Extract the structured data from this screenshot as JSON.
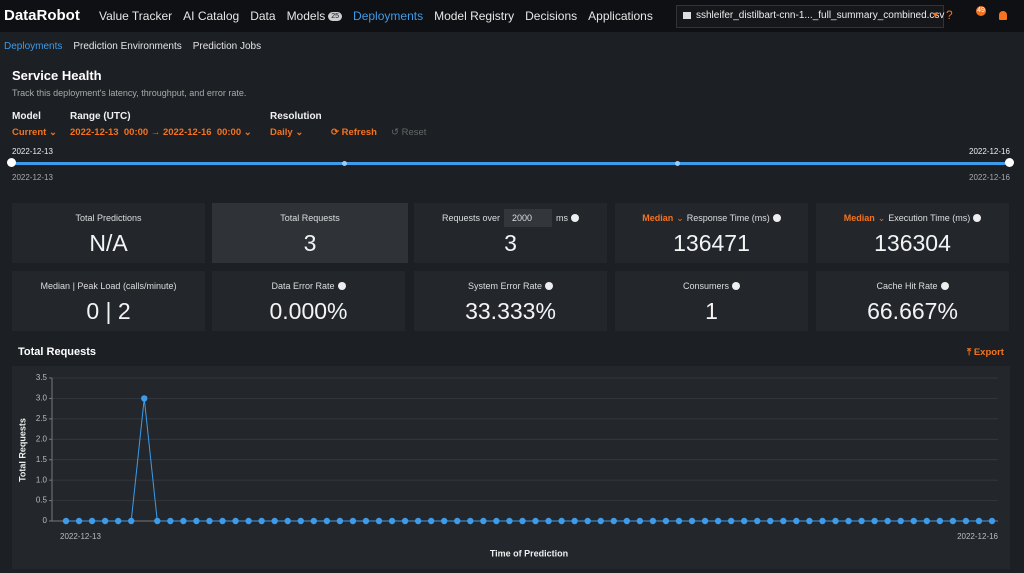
{
  "nav": {
    "logo": "DataRobot",
    "items": [
      "Value Tracker",
      "AI Catalog",
      "Data",
      "Models",
      "Deployments",
      "Model Registry",
      "Decisions",
      "Applications"
    ],
    "models_badge": 25,
    "file_selector": "sshleifer_distilbart-cnn-1..._full_summary_combined.csv",
    "help": "?",
    "notifications": 49
  },
  "subnav": [
    "Deployments",
    "Prediction Environments",
    "Prediction Jobs"
  ],
  "header": {
    "title": "Service Health",
    "subtitle": "Track this deployment's latency, throughput, and error rate."
  },
  "controls": {
    "model_label": "Model",
    "model_value": "Current",
    "range_label": "Range (UTC)",
    "range_value": "2022-12-13  00:00 → 2022-12-16  00:00",
    "resolution_label": "Resolution",
    "resolution_value": "Daily",
    "refresh": "Refresh",
    "reset": "Reset"
  },
  "slider": {
    "start": "2022-12-13",
    "end": "2022-12-16"
  },
  "metrics": [
    {
      "label": "Total Predictions",
      "value": "N/A"
    },
    {
      "label": "Total Requests",
      "value": "3"
    },
    {
      "label": "Requests over",
      "input": "2000",
      "unit": "ms",
      "value": "3"
    },
    {
      "selector": "Median",
      "label": "Response Time (ms)",
      "value": "136471"
    },
    {
      "selector": "Median",
      "label": "Execution Time (ms)",
      "value": "136304"
    },
    {
      "label": "Median | Peak Load (calls/minute)",
      "value": "0 | 2"
    },
    {
      "label": "Data Error Rate",
      "value": "0.000%"
    },
    {
      "label": "System Error Rate",
      "value": "33.333%"
    },
    {
      "label": "Consumers",
      "value": "1"
    },
    {
      "label": "Cache Hit Rate",
      "value": "66.667%"
    }
  ],
  "chart_section": {
    "title": "Total Requests",
    "export": "Export"
  },
  "chart_data": {
    "type": "line",
    "x_label": "Time of Prediction",
    "y_label": "Total Requests",
    "color": "#3d9be9",
    "grid": true,
    "categories": [
      "2022-12-13",
      null,
      null,
      null,
      null,
      null,
      null,
      null,
      null,
      null,
      null,
      null,
      null,
      null,
      null,
      null,
      null,
      null,
      null,
      null,
      null,
      null,
      null,
      null,
      null,
      null,
      null,
      null,
      null,
      null,
      null,
      null,
      null,
      null,
      null,
      null,
      null,
      null,
      null,
      null,
      null,
      null,
      null,
      null,
      null,
      null,
      null,
      null,
      null,
      null,
      null,
      null,
      null,
      null,
      null,
      null,
      null,
      null,
      null,
      null,
      null,
      null,
      null,
      null,
      null,
      null,
      null,
      null,
      null,
      null,
      null,
      "2022-12-16"
    ],
    "values": [
      0,
      0,
      0,
      0,
      0,
      0,
      3,
      0,
      0,
      0,
      0,
      0,
      0,
      0,
      0,
      0,
      0,
      0,
      0,
      0,
      0,
      0,
      0,
      0,
      0,
      0,
      0,
      0,
      0,
      0,
      0,
      0,
      0,
      0,
      0,
      0,
      0,
      0,
      0,
      0,
      0,
      0,
      0,
      0,
      0,
      0,
      0,
      0,
      0,
      0,
      0,
      0,
      0,
      0,
      0,
      0,
      0,
      0,
      0,
      0,
      0,
      0,
      0,
      0,
      0,
      0,
      0,
      0,
      0,
      0,
      0,
      0
    ],
    "ylim": [
      0,
      3.5
    ],
    "yticks": [
      0,
      0.5,
      {
        "value": 1,
        "label": "1.0"
      },
      1.5,
      {
        "value": 2,
        "label": "2.0"
      },
      2.5,
      {
        "value": 3,
        "label": "3.0"
      },
      3.5
    ]
  }
}
